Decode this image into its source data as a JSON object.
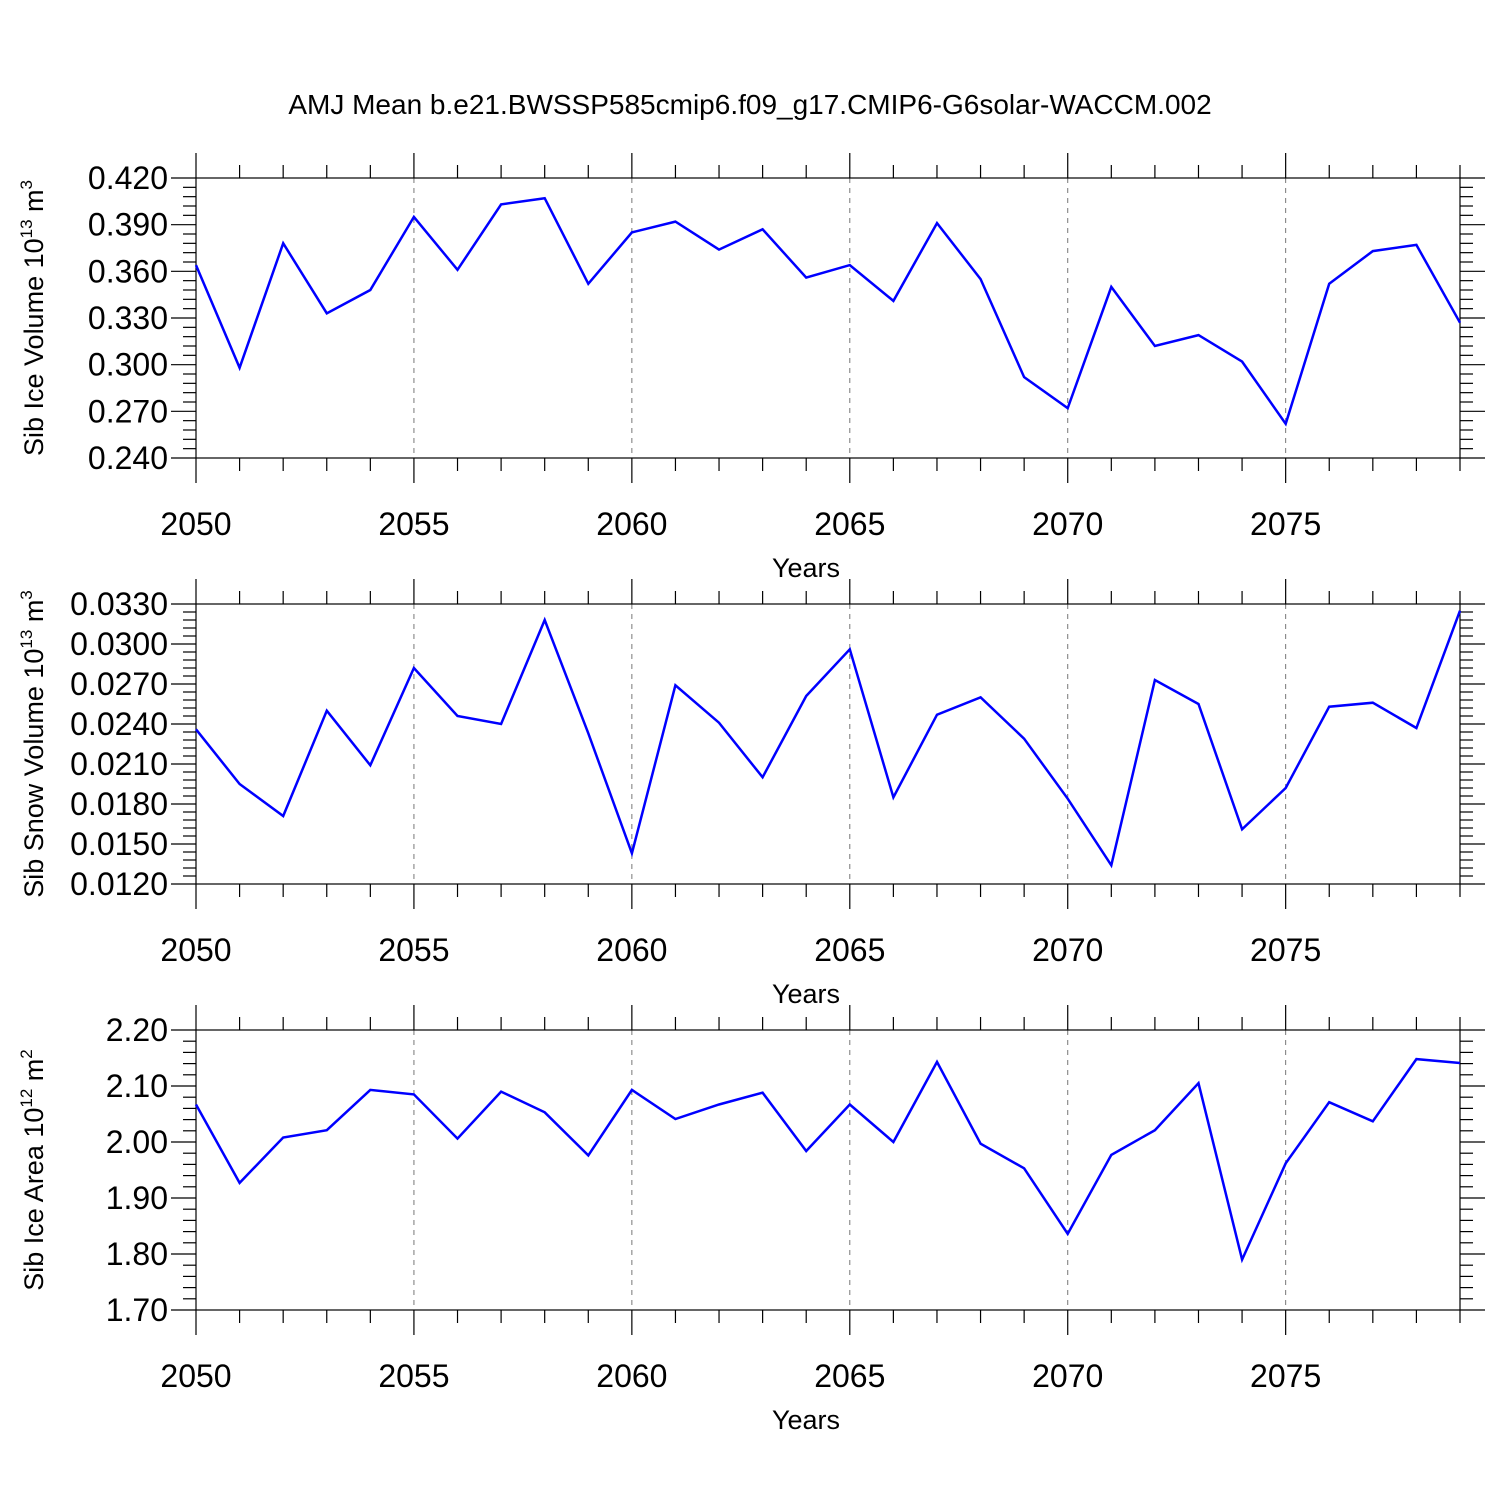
{
  "title": "AMJ Mean b.e21.BWSSP585cmip6.f09_g17.CMIP6-G6solar-WACCM.002",
  "colors": {
    "line": "#0000ff",
    "axis": "#000000",
    "grid": "#777777"
  },
  "chart_data": [
    {
      "type": "line",
      "ylabel_main": "Sib Ice Volume 10",
      "ylabel_exp": "13",
      "ylabel_unit": " m",
      "ylabel_unit_exp": "3",
      "xlabel": "Years",
      "xlim": [
        2050,
        2079
      ],
      "ylim": [
        0.24,
        0.42
      ],
      "yticks": [
        0.24,
        0.27,
        0.3,
        0.33,
        0.36,
        0.39,
        0.42
      ],
      "ytick_labels": [
        "0.240",
        "0.270",
        "0.300",
        "0.330",
        "0.360",
        "0.390",
        "0.420"
      ],
      "xticks": [
        2050,
        2055,
        2060,
        2065,
        2070,
        2075
      ],
      "xtick_labels": [
        "2050",
        "2055",
        "2060",
        "2065",
        "2070",
        "2075"
      ],
      "x": [
        2050,
        2051,
        2052,
        2053,
        2054,
        2055,
        2056,
        2057,
        2058,
        2059,
        2060,
        2061,
        2062,
        2063,
        2064,
        2065,
        2066,
        2067,
        2068,
        2069,
        2070,
        2071,
        2072,
        2073,
        2074,
        2075,
        2076,
        2077,
        2078,
        2079
      ],
      "values": [
        0.364,
        0.298,
        0.378,
        0.333,
        0.348,
        0.395,
        0.361,
        0.403,
        0.407,
        0.352,
        0.385,
        0.392,
        0.374,
        0.387,
        0.356,
        0.364,
        0.341,
        0.391,
        0.355,
        0.292,
        0.272,
        0.35,
        0.312,
        0.319,
        0.302,
        0.262,
        0.352,
        0.373,
        0.377,
        0.327
      ]
    },
    {
      "type": "line",
      "ylabel_main": "Sib Snow Volume 10",
      "ylabel_exp": "13",
      "ylabel_unit": " m",
      "ylabel_unit_exp": "3",
      "xlabel": "Years",
      "xlim": [
        2050,
        2079
      ],
      "ylim": [
        0.012,
        0.033
      ],
      "yticks": [
        0.012,
        0.015,
        0.018,
        0.021,
        0.024,
        0.027,
        0.03,
        0.033
      ],
      "ytick_labels": [
        "0.0120",
        "0.0150",
        "0.0180",
        "0.0210",
        "0.0240",
        "0.0270",
        "0.0300",
        "0.0330"
      ],
      "xticks": [
        2050,
        2055,
        2060,
        2065,
        2070,
        2075
      ],
      "xtick_labels": [
        "2050",
        "2055",
        "2060",
        "2065",
        "2070",
        "2075"
      ],
      "x": [
        2050,
        2051,
        2052,
        2053,
        2054,
        2055,
        2056,
        2057,
        2058,
        2059,
        2060,
        2061,
        2062,
        2063,
        2064,
        2065,
        2066,
        2067,
        2068,
        2069,
        2070,
        2071,
        2072,
        2073,
        2074,
        2075,
        2076,
        2077,
        2078,
        2079
      ],
      "values": [
        0.0236,
        0.0195,
        0.0171,
        0.025,
        0.0209,
        0.0282,
        0.0246,
        0.024,
        0.0318,
        0.0233,
        0.0143,
        0.0269,
        0.0241,
        0.02,
        0.0261,
        0.0296,
        0.0185,
        0.0247,
        0.026,
        0.0229,
        0.0184,
        0.0134,
        0.0273,
        0.0255,
        0.0161,
        0.0192,
        0.0253,
        0.0256,
        0.0237,
        0.0325
      ]
    },
    {
      "type": "line",
      "ylabel_main": "Sib Ice Area 10",
      "ylabel_exp": "12",
      "ylabel_unit": " m",
      "ylabel_unit_exp": "2",
      "xlabel": "Years",
      "xlim": [
        2050,
        2079
      ],
      "ylim": [
        1.7,
        2.2
      ],
      "yticks": [
        1.7,
        1.8,
        1.9,
        2.0,
        2.1,
        2.2
      ],
      "ytick_labels": [
        "1.70",
        "1.80",
        "1.90",
        "2.00",
        "2.10",
        "2.20"
      ],
      "xticks": [
        2050,
        2055,
        2060,
        2065,
        2070,
        2075
      ],
      "xtick_labels": [
        "2050",
        "2055",
        "2060",
        "2065",
        "2070",
        "2075"
      ],
      "x": [
        2050,
        2051,
        2052,
        2053,
        2054,
        2055,
        2056,
        2057,
        2058,
        2059,
        2060,
        2061,
        2062,
        2063,
        2064,
        2065,
        2066,
        2067,
        2068,
        2069,
        2070,
        2071,
        2072,
        2073,
        2074,
        2075,
        2076,
        2077,
        2078,
        2079
      ],
      "values": [
        2.067,
        1.927,
        2.008,
        2.021,
        2.093,
        2.085,
        2.006,
        2.09,
        2.053,
        1.976,
        2.093,
        2.041,
        2.067,
        2.088,
        1.984,
        2.067,
        2.0,
        2.143,
        1.997,
        1.953,
        1.836,
        1.977,
        2.021,
        2.105,
        1.79,
        1.962,
        2.071,
        2.037,
        2.148,
        2.141
      ]
    }
  ]
}
